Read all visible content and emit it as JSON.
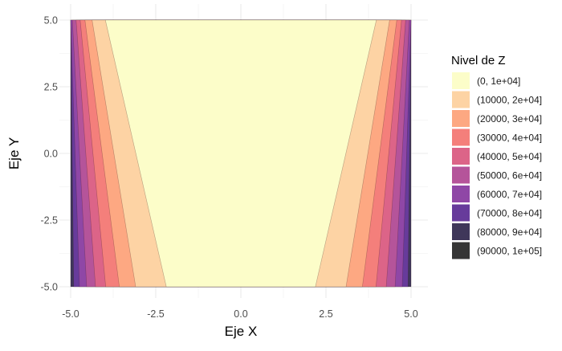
{
  "chart_data": {
    "type": "contour",
    "x_label": "Eje X",
    "y_label": "Eje Y",
    "x_range": [
      -5,
      5
    ],
    "y_range": [
      -5,
      5
    ],
    "x_ticks": [
      "-5.0",
      "-2.5",
      "0.0",
      "2.5",
      "5.0"
    ],
    "x_tick_values": [
      -5,
      -2.5,
      0,
      2.5,
      5
    ],
    "y_ticks": [
      "5.0",
      "2.5",
      "0.0",
      "-2.5",
      "-5.0"
    ],
    "y_tick_values": [
      5,
      2.5,
      0,
      -2.5,
      -5
    ],
    "grid": true,
    "legend_position": "right",
    "legend": {
      "title": "Nivel de Z",
      "levels": [
        {
          "label": "(0, 1e+04]",
          "color": "#fcfdc9"
        },
        {
          "label": "(10000, 2e+04]",
          "color": "#fdd3a4"
        },
        {
          "label": "(20000, 3e+04]",
          "color": "#fda882"
        },
        {
          "label": "(30000, 4e+04]",
          "color": "#f47f7b"
        },
        {
          "label": "(40000, 5e+04]",
          "color": "#dc6488"
        },
        {
          "label": "(50000, 6e+04]",
          "color": "#b5549a"
        },
        {
          "label": "(60000, 7e+04]",
          "color": "#8f47a6"
        },
        {
          "label": "(70000, 8e+04]",
          "color": "#673b9b"
        },
        {
          "label": "(80000, 9e+04]",
          "color": "#3f375a"
        },
        {
          "label": "(90000, 1e+05]",
          "color": "#353535"
        }
      ]
    },
    "boundaries": {
      "note_units": "Each level boundary gives the |x| value where the level begins, at y = 5 and at y = -5 (left side of plot; right side mirrored).",
      "left": [
        {
          "y_top": -3.98,
          "y_bottom": -2.19
        },
        {
          "y_top": -4.37,
          "y_bottom": -3.09
        },
        {
          "y_top": -4.58,
          "y_bottom": -3.57
        },
        {
          "y_top": -4.72,
          "y_bottom": -3.97
        },
        {
          "y_top": -4.84,
          "y_bottom": -4.27
        },
        {
          "y_top": -4.95,
          "y_bottom": -4.53
        },
        {
          "y_top": -5.0,
          "y_bottom": -4.74
        },
        {
          "y_top": -5.0,
          "y_bottom": -4.91
        },
        {
          "y_top": -5.0,
          "y_bottom": -5.0
        }
      ],
      "right": [
        {
          "y_top": 3.98,
          "y_bottom": 2.19
        },
        {
          "y_top": 4.37,
          "y_bottom": 3.09
        },
        {
          "y_top": 4.58,
          "y_bottom": 3.57
        },
        {
          "y_top": 4.72,
          "y_bottom": 3.97
        },
        {
          "y_top": 4.84,
          "y_bottom": 4.27
        },
        {
          "y_top": 4.95,
          "y_bottom": 4.53
        },
        {
          "y_top": 5.0,
          "y_bottom": 4.74
        },
        {
          "y_top": 5.0,
          "y_bottom": 4.91
        },
        {
          "y_top": 5.0,
          "y_bottom": 5.0
        }
      ]
    }
  }
}
